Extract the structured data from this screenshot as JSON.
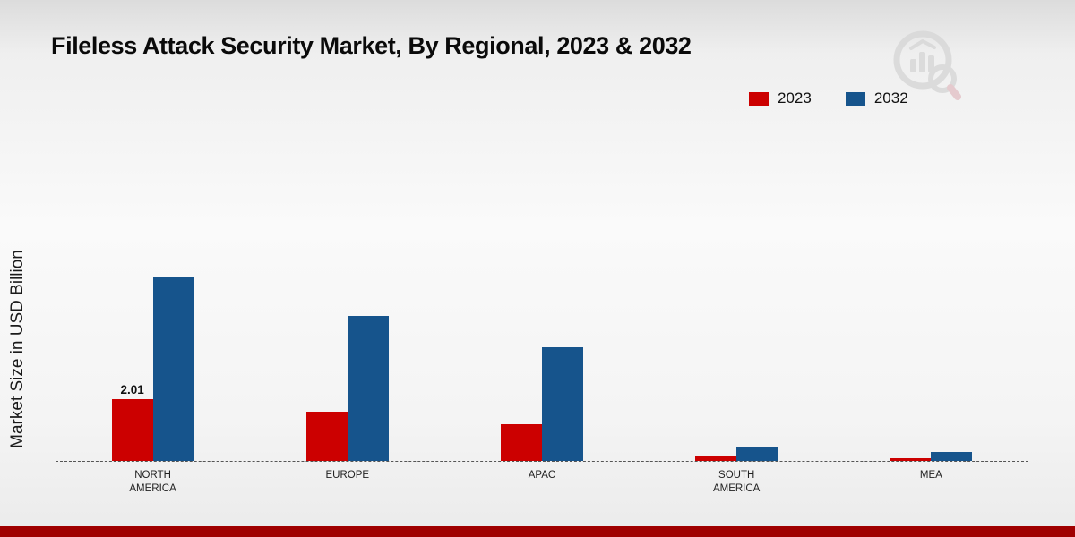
{
  "title": "Fileless Attack Security Market, By Regional, 2023 & 2032",
  "ylabel": "Market Size in USD Billion",
  "colors": {
    "red": "#cc0000",
    "blue": "#16548c",
    "accent_bar": "#a00000"
  },
  "chart_data": {
    "type": "bar",
    "title": "Fileless Attack Security Market, By Regional, 2023 & 2032",
    "xlabel": "",
    "ylabel": "Market Size in USD Billion",
    "categories": [
      "NORTH AMERICA",
      "EUROPE",
      "APAC",
      "SOUTH AMERICA",
      "MEA"
    ],
    "series": [
      {
        "name": "2023",
        "color": "#cc0000",
        "values": [
          2.01,
          1.6,
          1.2,
          0.15,
          0.1
        ]
      },
      {
        "name": "2032",
        "color": "#16548c",
        "values": [
          6.0,
          4.7,
          3.7,
          0.45,
          0.3
        ]
      }
    ],
    "value_labels": [
      {
        "series": "2023",
        "category": "NORTH AMERICA",
        "text": "2.01"
      }
    ],
    "ylim": [
      0,
      7
    ],
    "grid": false,
    "baseline_style": "dashed",
    "legend_position": "top-right"
  }
}
